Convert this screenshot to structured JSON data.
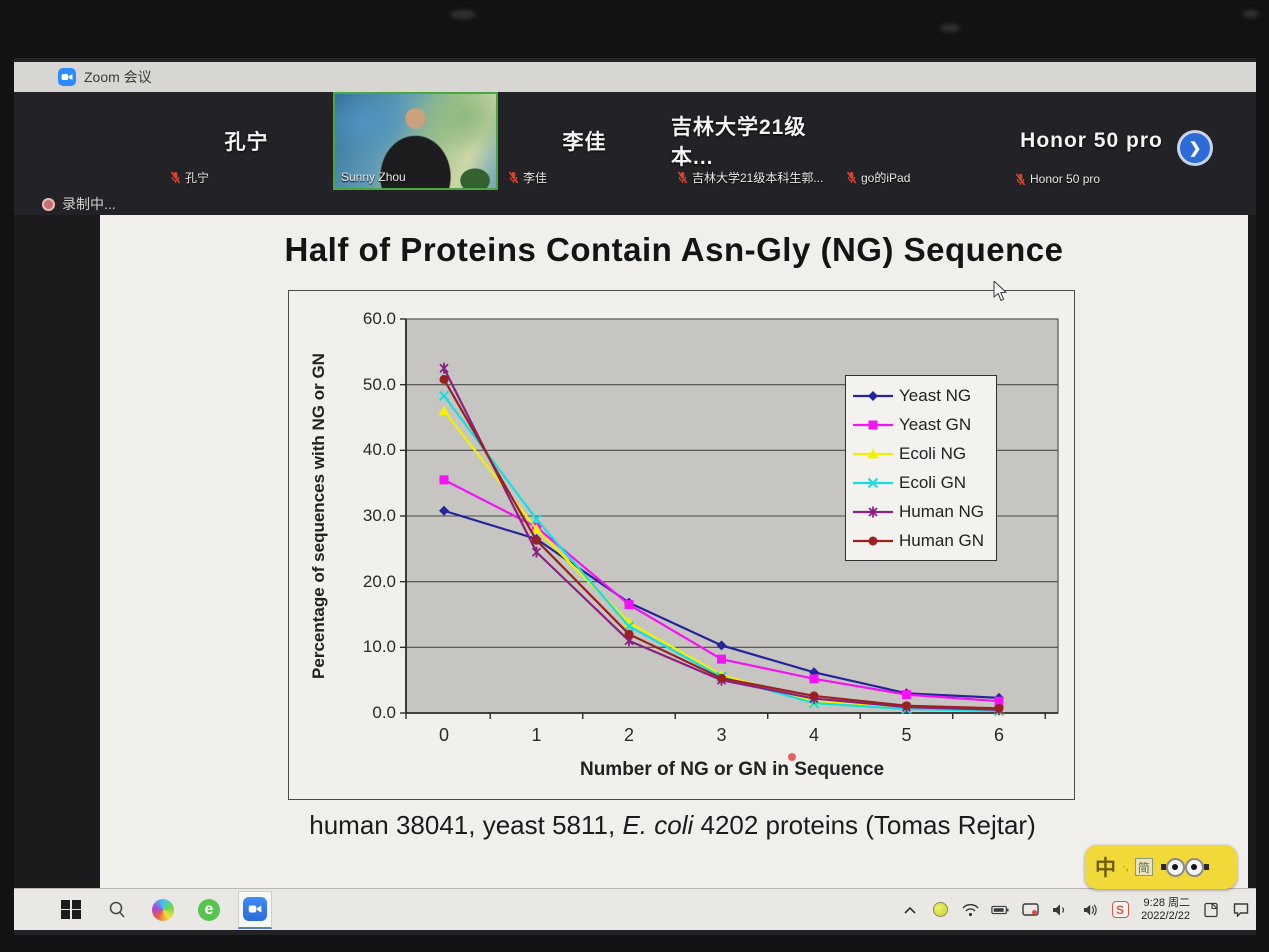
{
  "window": {
    "title": "Zoom 会议"
  },
  "meeting": {
    "recording_label": "录制中...",
    "participants": [
      {
        "display_name": "孔宁",
        "label": "孔宁",
        "muted": true,
        "video": false
      },
      {
        "display_name": "",
        "label": "Sunny Zhou",
        "muted": false,
        "video": true
      },
      {
        "display_name": "李佳",
        "label": "李佳",
        "muted": true,
        "video": false
      },
      {
        "display_name": "吉林大学21级本...",
        "label": "吉林大学21级本科生郭...",
        "muted": true,
        "video": false
      },
      {
        "display_name": "",
        "label": "go的iPad",
        "muted": true,
        "video": false
      },
      {
        "display_name": "Honor 50 pro",
        "label": "Honor 50 pro",
        "muted": true,
        "video": false
      }
    ],
    "next_arrow_icon": "chevron-right"
  },
  "slide": {
    "title": "Half of Proteins Contain Asn-Gly (NG) Sequence",
    "caption_parts": [
      "human 38041, yeast 5811, ",
      "E. coli",
      " 4202 proteins (Tomas Rejtar)"
    ]
  },
  "chart_data": {
    "type": "line",
    "title": "Half of Proteins Contain Asn-Gly (NG) Sequence",
    "x": [
      0,
      1,
      2,
      3,
      4,
      5,
      6
    ],
    "xticks": [
      "0",
      "1",
      "2",
      "3",
      "4",
      "5",
      "6"
    ],
    "yticks": [
      "60.0",
      "50.0",
      "40.0",
      "30.0",
      "20.0",
      "10.0",
      "0.0"
    ],
    "xlabel": "Number of NG or GN in Sequence",
    "ylabel": "Percentage of sequences with NG or GN",
    "ylim": [
      0,
      60
    ],
    "grid": true,
    "legend_position": "upper right",
    "plot_bg": "#c7c5c1",
    "series": [
      {
        "name": "Yeast NG",
        "color": "#24249B",
        "marker": "diamond",
        "values": [
          30.8,
          26.5,
          16.8,
          10.3,
          6.2,
          3.0,
          2.3
        ]
      },
      {
        "name": "Yeast GN",
        "color": "#F413F4",
        "marker": "square",
        "values": [
          35.5,
          28.3,
          16.5,
          8.2,
          5.2,
          2.8,
          1.8
        ]
      },
      {
        "name": "Ecoli NG",
        "color": "#F0F000",
        "marker": "triangle",
        "values": [
          46.0,
          28.0,
          13.8,
          5.8,
          1.8,
          0.8,
          0.4
        ]
      },
      {
        "name": "Ecoli GN",
        "color": "#17DEDE",
        "marker": "x",
        "values": [
          48.3,
          29.5,
          13.2,
          5.5,
          1.5,
          0.6,
          0.3
        ]
      },
      {
        "name": "Human NG",
        "color": "#8B2083",
        "marker": "star",
        "values": [
          52.5,
          24.5,
          11.0,
          5.0,
          2.2,
          0.9,
          0.5
        ]
      },
      {
        "name": "Human GN",
        "color": "#992121",
        "marker": "circle",
        "values": [
          50.8,
          26.3,
          12.0,
          5.3,
          2.6,
          1.1,
          0.7
        ]
      }
    ]
  },
  "taskbar": {
    "left_icons": [
      "windows-start-icon",
      "search-icon",
      "edge-browser-icon",
      "internet-explorer-icon",
      "zoom-app-icon"
    ],
    "tray_icons": [
      "hidden-icons-chevron-icon",
      "yellow-app-icon",
      "network-icon",
      "battery-icon",
      "screen-capture-icon",
      "volume-icon",
      "audio-output-icon",
      "sogou-s-icon",
      "notes-icon",
      "notification-icon"
    ],
    "clock": {
      "time": "9:28 周二",
      "date": "2022/2/22"
    }
  },
  "input_method": {
    "mode": "中",
    "punct": "·,",
    "charset": "简",
    "skin_color": "#f2d93a"
  },
  "colors": {
    "zoom_blue": "#2D8CFF",
    "recording_red": "#c9706e",
    "active_speaker_green": "#49a83e",
    "laser_red": "#de4a4a"
  }
}
